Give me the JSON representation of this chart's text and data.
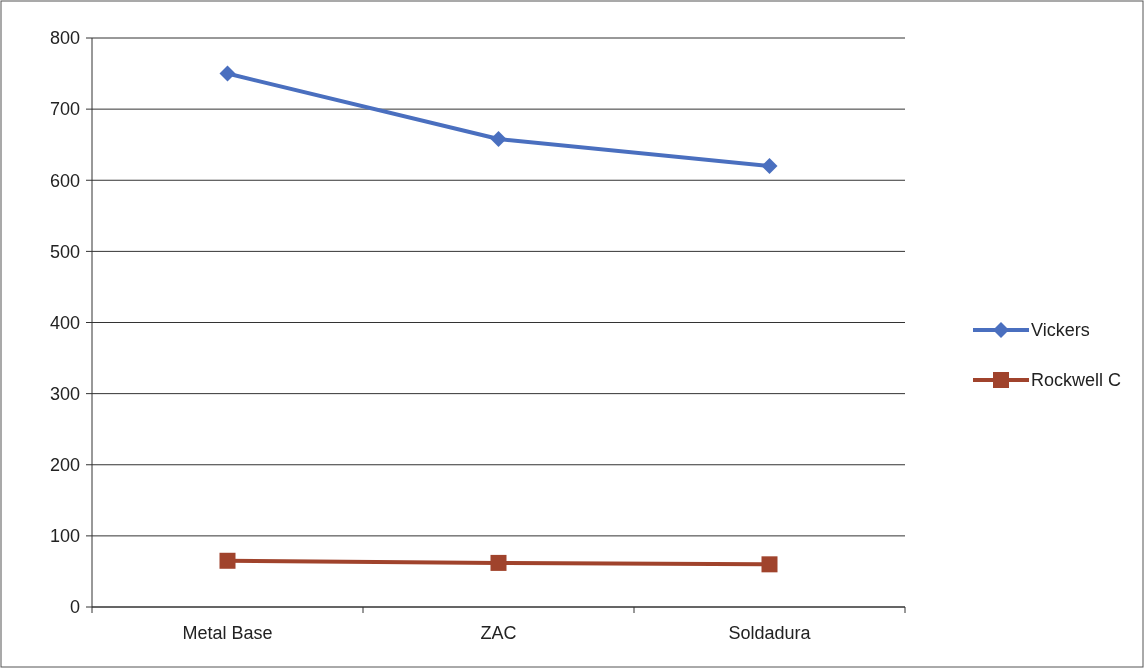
{
  "chart_data": {
    "type": "line",
    "categories": [
      "Metal Base",
      "ZAC",
      "Soldadura"
    ],
    "series": [
      {
        "name": "Vickers",
        "color": "#4a6fbf",
        "values": [
          750,
          658,
          620
        ],
        "marker": "diamond"
      },
      {
        "name": "Rockwell C",
        "color": "#a0432c",
        "values": [
          65,
          62,
          60
        ],
        "marker": "square"
      }
    ],
    "ylim": [
      0,
      800
    ],
    "yticks": [
      0,
      100,
      200,
      300,
      400,
      500,
      600,
      700,
      800
    ],
    "grid": "y",
    "legend": "right"
  }
}
